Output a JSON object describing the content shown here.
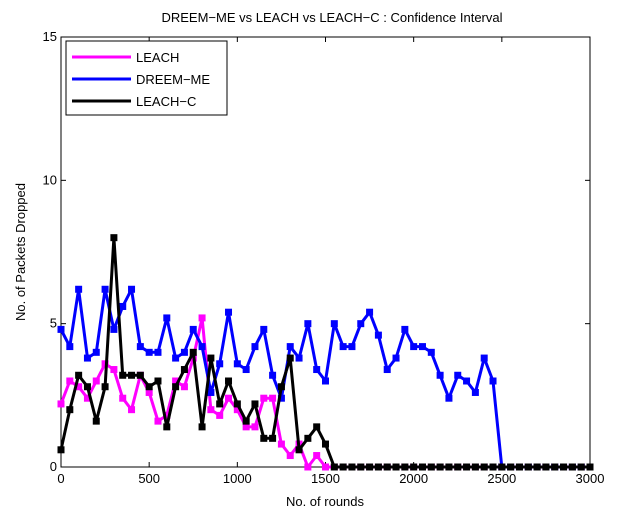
{
  "chart_data": {
    "type": "line",
    "title": "DREEM−ME vs LEACH vs LEACH−C : Confidence Interval",
    "xlabel": "No. of rounds",
    "ylabel": "No. of Packets Dropped",
    "xlim": [
      0,
      3000
    ],
    "ylim": [
      0,
      15
    ],
    "xticks": [
      0,
      500,
      1000,
      1500,
      2000,
      2500,
      3000
    ],
    "yticks": [
      0,
      5,
      10,
      15
    ],
    "grid": false,
    "legend_position": "top-left",
    "series": [
      {
        "name": "LEACH",
        "color": "#ff00ff",
        "marker": "square",
        "x": [
          0,
          50,
          100,
          150,
          200,
          250,
          300,
          350,
          400,
          450,
          500,
          550,
          600,
          650,
          700,
          750,
          800,
          850,
          900,
          950,
          1000,
          1050,
          1100,
          1150,
          1200,
          1250,
          1300,
          1350,
          1400,
          1450,
          1500,
          1550,
          1600,
          1650,
          1700,
          1750,
          1800,
          1850,
          1900,
          1950,
          2000,
          2050,
          2100,
          2150,
          2200,
          2250,
          2300,
          2350,
          2400,
          2450,
          2500,
          2550,
          2600,
          2650,
          2700,
          2750,
          2800,
          2850,
          2900,
          2950,
          3000
        ],
        "y": [
          2.2,
          3.0,
          2.8,
          2.4,
          3.0,
          3.6,
          3.4,
          2.4,
          2.0,
          3.2,
          2.6,
          1.6,
          1.8,
          3.0,
          2.8,
          3.8,
          5.2,
          2.0,
          1.8,
          2.4,
          2.0,
          1.4,
          1.4,
          2.4,
          2.4,
          0.8,
          0.4,
          0.8,
          0.0,
          0.4,
          0.0,
          0,
          0,
          0,
          0,
          0,
          0,
          0,
          0,
          0,
          0,
          0,
          0,
          0,
          0,
          0,
          0,
          0,
          0,
          0,
          0,
          0,
          0,
          0,
          0,
          0,
          0,
          0,
          0,
          0,
          0
        ]
      },
      {
        "name": "DREEM−ME",
        "color": "#0000ff",
        "marker": "square",
        "x": [
          0,
          50,
          100,
          150,
          200,
          250,
          300,
          350,
          400,
          450,
          500,
          550,
          600,
          650,
          700,
          750,
          800,
          850,
          900,
          950,
          1000,
          1050,
          1100,
          1150,
          1200,
          1250,
          1300,
          1350,
          1400,
          1450,
          1500,
          1550,
          1600,
          1650,
          1700,
          1750,
          1800,
          1850,
          1900,
          1950,
          2000,
          2050,
          2100,
          2150,
          2200,
          2250,
          2300,
          2350,
          2400,
          2450,
          2500,
          2550,
          2600,
          2650,
          2700,
          2750,
          2800,
          2850,
          2900,
          2950,
          3000
        ],
        "y": [
          4.8,
          4.2,
          6.2,
          3.8,
          4.0,
          6.2,
          4.8,
          5.6,
          6.2,
          4.2,
          4.0,
          4.0,
          5.2,
          3.8,
          4.0,
          4.8,
          4.2,
          2.6,
          3.6,
          5.4,
          3.6,
          3.4,
          4.2,
          4.8,
          3.2,
          2.4,
          4.2,
          3.8,
          5.0,
          3.4,
          3.0,
          5.0,
          4.2,
          4.2,
          5.0,
          5.4,
          4.6,
          3.4,
          3.8,
          4.8,
          4.2,
          4.2,
          4.0,
          3.2,
          2.4,
          3.2,
          3.0,
          2.6,
          3.8,
          3.0,
          0.0,
          0,
          0,
          0,
          0,
          0,
          0,
          0,
          0,
          0,
          0
        ]
      },
      {
        "name": "LEACH−C",
        "color": "#000000",
        "marker": "square",
        "x": [
          0,
          50,
          100,
          150,
          200,
          250,
          300,
          350,
          400,
          450,
          500,
          550,
          600,
          650,
          700,
          750,
          800,
          850,
          900,
          950,
          1000,
          1050,
          1100,
          1150,
          1200,
          1250,
          1300,
          1350,
          1400,
          1450,
          1500,
          1550,
          1600,
          1650,
          1700,
          1750,
          1800,
          1850,
          1900,
          1950,
          2000,
          2050,
          2100,
          2150,
          2200,
          2250,
          2300,
          2350,
          2400,
          2450,
          2500,
          2550,
          2600,
          2650,
          2700,
          2750,
          2800,
          2850,
          2900,
          2950,
          3000
        ],
        "y": [
          0.6,
          2.0,
          3.2,
          2.8,
          1.6,
          2.8,
          8.0,
          3.2,
          3.2,
          3.2,
          2.8,
          3.0,
          1.4,
          2.8,
          3.4,
          4.0,
          1.4,
          3.8,
          2.2,
          3.0,
          2.2,
          1.6,
          2.2,
          1.0,
          1.0,
          2.8,
          3.8,
          0.6,
          1.0,
          1.4,
          0.8,
          0,
          0,
          0,
          0,
          0,
          0,
          0,
          0,
          0,
          0,
          0,
          0,
          0,
          0,
          0,
          0,
          0,
          0,
          0,
          0,
          0,
          0,
          0,
          0,
          0,
          0,
          0,
          0,
          0,
          0
        ]
      }
    ]
  }
}
